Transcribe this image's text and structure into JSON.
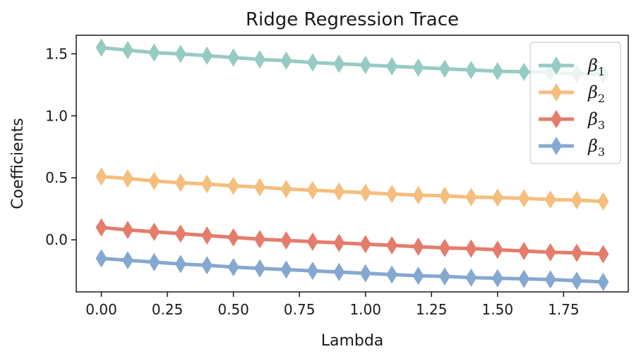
{
  "chart_data": {
    "type": "line",
    "title": "Ridge Regression Trace",
    "xlabel": "Lambda",
    "ylabel": "Coefficients",
    "xlim": [
      -0.095,
      1.995
    ],
    "ylim": [
      -0.42,
      1.65
    ],
    "xticks": [
      0.0,
      0.25,
      0.5,
      0.75,
      1.0,
      1.25,
      1.5,
      1.75
    ],
    "xtick_labels": [
      "0.00",
      "0.25",
      "0.50",
      "0.75",
      "1.00",
      "1.25",
      "1.50",
      "1.75"
    ],
    "yticks": [
      0.0,
      0.5,
      1.0,
      1.5
    ],
    "ytick_labels": [
      "0.0",
      "0.5",
      "1.0",
      "1.5"
    ],
    "grid": false,
    "legend_position": "top-right",
    "x": [
      0.0,
      0.1,
      0.2,
      0.3,
      0.4,
      0.5,
      0.6,
      0.7,
      0.8,
      0.9,
      1.0,
      1.1,
      1.2,
      1.3,
      1.4,
      1.5,
      1.6,
      1.7,
      1.8,
      1.9
    ],
    "series": [
      {
        "name": "β",
        "sub": "1",
        "color": "#96cbc3",
        "values": [
          1.55,
          1.53,
          1.51,
          1.5,
          1.485,
          1.47,
          1.455,
          1.445,
          1.43,
          1.42,
          1.41,
          1.4,
          1.39,
          1.38,
          1.37,
          1.36,
          1.355,
          1.35,
          1.34,
          1.335
        ]
      },
      {
        "name": "β",
        "sub": "2",
        "color": "#f5be7e",
        "values": [
          0.51,
          0.495,
          0.475,
          0.46,
          0.45,
          0.435,
          0.425,
          0.41,
          0.4,
          0.39,
          0.38,
          0.37,
          0.36,
          0.355,
          0.345,
          0.34,
          0.335,
          0.325,
          0.32,
          0.31
        ]
      },
      {
        "name": "β",
        "sub": "3",
        "color": "#e47c6c",
        "values": [
          0.1,
          0.08,
          0.065,
          0.05,
          0.035,
          0.02,
          0.005,
          -0.005,
          -0.015,
          -0.025,
          -0.035,
          -0.045,
          -0.055,
          -0.065,
          -0.07,
          -0.08,
          -0.09,
          -0.1,
          -0.105,
          -0.115
        ]
      },
      {
        "name": "β",
        "sub": "3",
        "color": "#86a8d0",
        "values": [
          -0.15,
          -0.165,
          -0.18,
          -0.195,
          -0.205,
          -0.22,
          -0.23,
          -0.24,
          -0.25,
          -0.26,
          -0.27,
          -0.28,
          -0.29,
          -0.295,
          -0.305,
          -0.31,
          -0.315,
          -0.32,
          -0.33,
          -0.34
        ]
      }
    ]
  }
}
